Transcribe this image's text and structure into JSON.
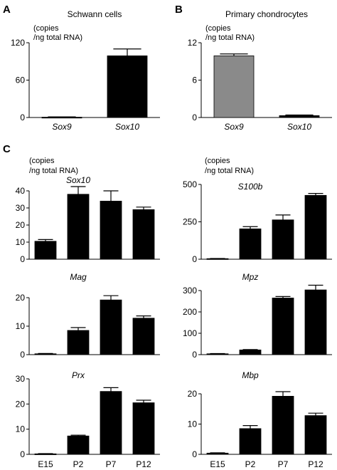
{
  "panel_letters": [
    "A",
    "B",
    "C"
  ],
  "shared_ylabel_line1": "(copies",
  "shared_ylabel_line2": "/ng total RNA)",
  "colors": {
    "bar_black": "#000000",
    "bar_grey": "#8a8a8a",
    "axis": "#000000"
  },
  "chart_data": [
    {
      "type": "bar",
      "panel": "A",
      "title": "Schwann cells",
      "ylabel_line1": "(copies",
      "ylabel_line2": "/ng total RNA)",
      "categories": [
        "Sox9",
        "Sox10"
      ],
      "values": [
        0.5,
        99
      ],
      "errors": [
        0.5,
        11
      ],
      "ylim": [
        0,
        120
      ],
      "yticks": [
        "0",
        "60",
        "120"
      ],
      "bar_colors": [
        "#000000",
        "#000000"
      ]
    },
    {
      "type": "bar",
      "panel": "B",
      "title": "Primary chondrocytes",
      "ylabel_line1": "(copies",
      "ylabel_line2": "/ng total RNA)",
      "categories": [
        "Sox9",
        "Sox10"
      ],
      "values": [
        9.9,
        0.3
      ],
      "errors": [
        0.3,
        0.1
      ],
      "ylim": [
        0,
        12
      ],
      "yticks": [
        "0",
        "6",
        "12"
      ],
      "bar_colors": [
        "#8a8a8a",
        "#000000"
      ]
    },
    {
      "type": "bar",
      "panel": "C",
      "title": "Sox10",
      "ylabel_line1": "(copies",
      "ylabel_line2": "/ng total RNA)",
      "categories": [
        "E15",
        "P2",
        "P7",
        "P12"
      ],
      "values": [
        10.5,
        38,
        34,
        29
      ],
      "errors": [
        1,
        4.5,
        6,
        1.5
      ],
      "ylim": [
        0,
        40
      ],
      "yticks": [
        "0",
        "10",
        "20",
        "30",
        "40"
      ]
    },
    {
      "type": "bar",
      "panel": "C",
      "title": "S100b",
      "ylabel_line1": "(copies",
      "ylabel_line2": "/ng total RNA)",
      "categories": [
        "E15",
        "P2",
        "P7",
        "P12"
      ],
      "values": [
        4,
        203,
        263,
        427
      ],
      "errors": [
        1,
        15,
        33,
        13
      ],
      "ylim": [
        0,
        500
      ],
      "yticks": [
        "0",
        "250",
        "500"
      ]
    },
    {
      "type": "bar",
      "panel": "C",
      "title": "Mag",
      "categories": [
        "E15",
        "P2",
        "P7",
        "P12"
      ],
      "values": [
        0.3,
        8.5,
        19.2,
        12.8
      ],
      "errors": [
        0.1,
        1,
        1.5,
        0.8
      ],
      "ylim": [
        0,
        20
      ],
      "yticks": [
        "0",
        "10",
        "20"
      ]
    },
    {
      "type": "bar",
      "panel": "C",
      "title": "Mpz",
      "categories": [
        "E15",
        "P2",
        "P7",
        "P12"
      ],
      "values": [
        4,
        22,
        265,
        303
      ],
      "errors": [
        1,
        2,
        7,
        22
      ],
      "ylim": [
        0,
        300
      ],
      "yticks": [
        "0",
        "100",
        "200",
        "300"
      ]
    },
    {
      "type": "bar",
      "panel": "C",
      "title": "Prx",
      "categories": [
        "E15",
        "P2",
        "P7",
        "P12"
      ],
      "values": [
        0.2,
        7.3,
        25,
        20.5
      ],
      "errors": [
        0.1,
        0.3,
        1.5,
        1
      ],
      "ylim": [
        0,
        30
      ],
      "yticks": [
        "0",
        "10",
        "20",
        "30"
      ]
    },
    {
      "type": "bar",
      "panel": "C",
      "title": "Mbp",
      "categories": [
        "E15",
        "P2",
        "P7",
        "P12"
      ],
      "values": [
        0.4,
        8.5,
        19.2,
        12.8
      ],
      "errors": [
        0.1,
        1,
        1.5,
        0.8
      ],
      "ylim": [
        0,
        20
      ],
      "yticks": [
        "0",
        "10",
        "20"
      ]
    }
  ]
}
